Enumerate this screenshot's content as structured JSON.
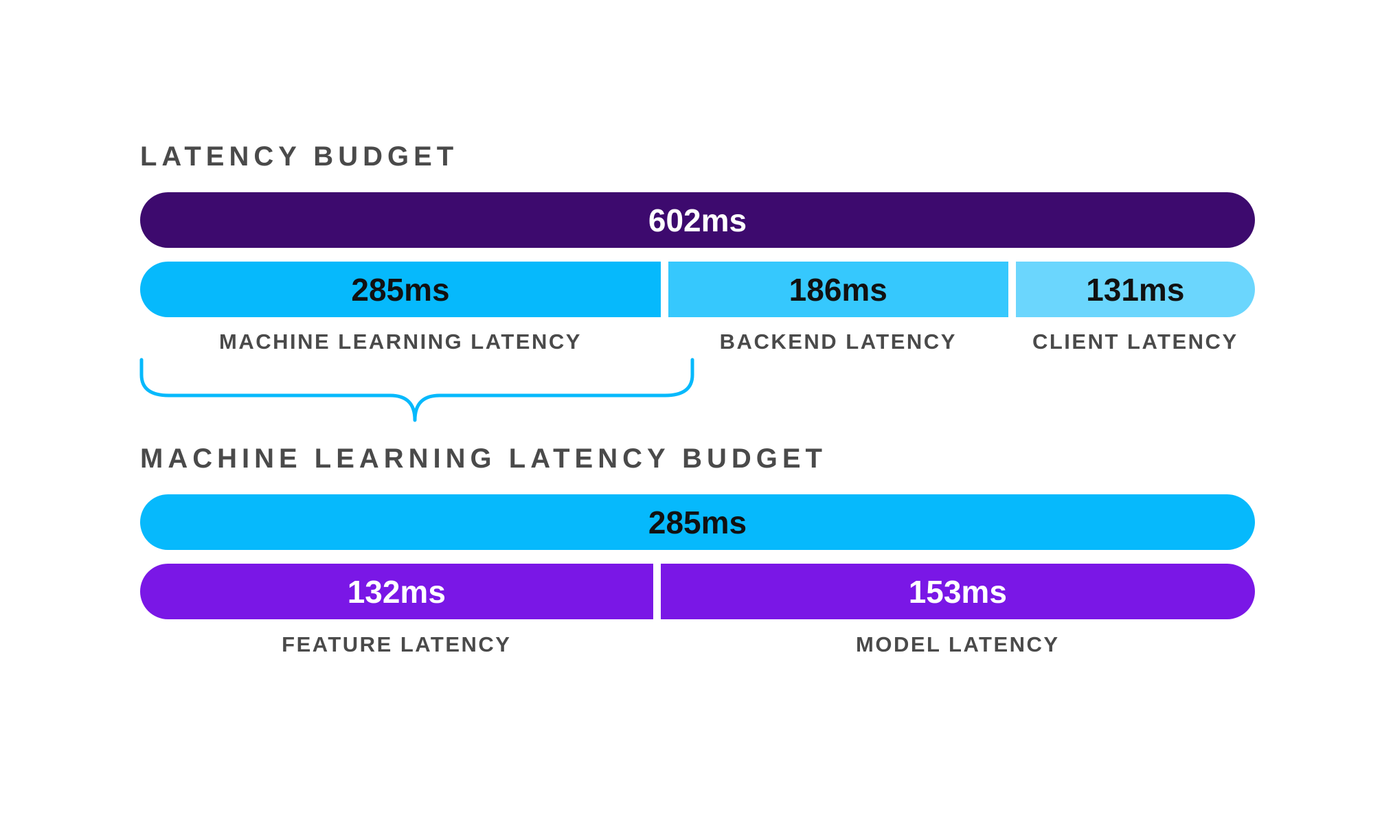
{
  "latency_budget": {
    "title": "LATENCY BUDGET",
    "total": {
      "label": "602ms",
      "value": 602,
      "color": "#3d0a6e",
      "text_color": "#ffffff"
    },
    "segments": [
      {
        "label": "285ms",
        "value": 285,
        "caption": "MACHINE LEARNING LATENCY",
        "color": "#06b9fc",
        "text_color": "#111111"
      },
      {
        "label": "186ms",
        "value": 186,
        "caption": "BACKEND LATENCY",
        "color": "#36c8fd",
        "text_color": "#111111"
      },
      {
        "label": "131ms",
        "value": 131,
        "caption": "CLIENT LATENCY",
        "color": "#6bd6fd",
        "text_color": "#111111"
      }
    ]
  },
  "brace": {
    "color": "#06b9fc"
  },
  "ml_latency_budget": {
    "title": "MACHINE LEARNING LATENCY BUDGET",
    "total": {
      "label": "285ms",
      "value": 285,
      "color": "#06b9fc",
      "text_color": "#111111"
    },
    "segments": [
      {
        "label": "132ms",
        "value": 132,
        "caption": "FEATURE LATENCY",
        "color": "#7a17e6",
        "text_color": "#ffffff"
      },
      {
        "label": "153ms",
        "value": 153,
        "caption": "MODEL LATENCY",
        "color": "#7a17e6",
        "text_color": "#ffffff"
      }
    ]
  }
}
